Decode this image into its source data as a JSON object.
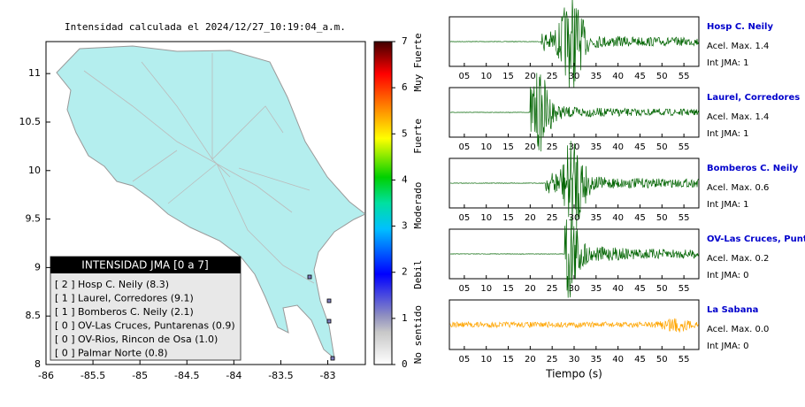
{
  "map": {
    "title": "Intensidad calculada el 2024/12/27_10:19:04_a.m.",
    "xlim": [
      -86,
      -82.6
    ],
    "ylim": [
      8,
      11.33
    ],
    "xticks": [
      -86,
      -85.5,
      -85,
      -84.5,
      -84,
      -83.5,
      -83
    ],
    "yticks": [
      8,
      8.5,
      9,
      9.5,
      10,
      10.5,
      11
    ],
    "legend": {
      "title": "INTENSIDAD JMA [0 a 7]",
      "items": [
        {
          "code": "[ 2 ]",
          "name": "Hosp C. Neily (8.3)"
        },
        {
          "code": "[ 1 ]",
          "name": "Laurel, Corredores (9.1)"
        },
        {
          "code": "[ 1 ]",
          "name": "Bomberos C. Neily (2.1)"
        },
        {
          "code": "[ 0 ]",
          "name": "OV-Las Cruces, Puntarenas (0.9)"
        },
        {
          "code": "[ 0 ]",
          "name": "OV-Rios, Rincon de Osa (1.0)"
        },
        {
          "code": "[ 0 ]",
          "name": "Palmar Norte (0.8)"
        }
      ]
    }
  },
  "colorbar": {
    "lim": [
      0,
      7
    ],
    "ticks": [
      0,
      1,
      2,
      3,
      4,
      5,
      6,
      7
    ],
    "labels": [
      {
        "value": 0.65,
        "label": "No sentido"
      },
      {
        "value": 1.95,
        "label": "Debil"
      },
      {
        "value": 3.45,
        "label": "Moderado"
      },
      {
        "value": 4.95,
        "label": "Fuerte"
      },
      {
        "value": 6.55,
        "label": "Muy Fuerte"
      }
    ]
  },
  "traces": {
    "xlim": [
      1.6,
      58.4
    ],
    "xticks": [
      {
        "value": 5,
        "label": "05"
      },
      10,
      15,
      20,
      25,
      30,
      35,
      40,
      45,
      50,
      55
    ],
    "xlabel": "Tiempo (s)",
    "stations": [
      {
        "name": "Hosp C. Neily",
        "acel": "Acel. Max. 1.4",
        "int": "Int JMA: 1",
        "color": "#006400"
      },
      {
        "name": "Laurel, Corredores",
        "acel": "Acel. Max. 1.4",
        "int": "Int JMA: 1",
        "color": "#006400"
      },
      {
        "name": "Bomberos C. Neily",
        "acel": "Acel. Max. 0.6",
        "int": "Int JMA: 1",
        "color": "#006400"
      },
      {
        "name": "OV-Las Cruces, Puntar",
        "acel": "Acel. Max. 0.2",
        "int": "Int JMA: 0",
        "color": "#006400"
      },
      {
        "name": "La Sabana",
        "acel": "Acel. Max. 0.0",
        "int": "Int JMA: 0",
        "color": "#ffa500"
      }
    ]
  }
}
